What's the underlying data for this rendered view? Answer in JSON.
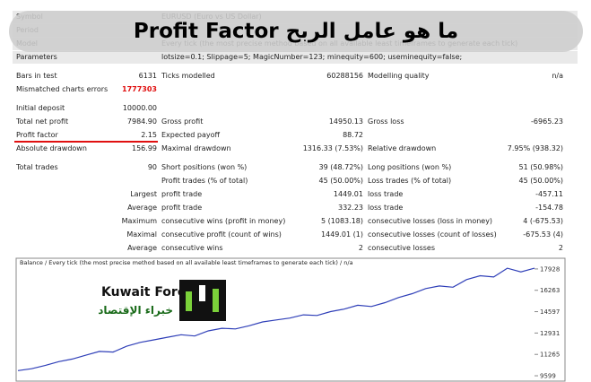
{
  "header": {
    "title": "ما هو عامل الربح Profit Factor"
  },
  "settings": [
    {
      "label": "Symbol",
      "value": "EURUSD (Euro vs US Dollar)"
    },
    {
      "label": "Period"
    },
    {
      "label": "Model",
      "value": "Every tick (the most precise method based on all available least timeframes to generate each tick)"
    },
    {
      "label": "Parameters",
      "value": "lotsize=0.1; Slippage=5; MagicNumber=123; minequity=600; useminequity=false;"
    }
  ],
  "report": {
    "rows": [
      [
        "Bars in test",
        "6131",
        "Ticks modelled",
        "60288156",
        "Modelling quality",
        "n/a"
      ],
      [
        "Mismatched charts errors",
        "1777303"
      ],
      [
        "Initial deposit",
        "10000.00"
      ],
      [
        "Total net profit",
        "7984.90",
        "Gross profit",
        "14950.13",
        "Gross loss",
        "-6965.23"
      ],
      [
        "Profit factor",
        "2.15",
        "Expected payoff",
        "88.72"
      ],
      [
        "Absolute drawdown",
        "156.99",
        "Maximal drawdown",
        "1316.33 (7.53%)",
        "Relative drawdown",
        "7.95% (938.32)"
      ],
      [
        "Total trades",
        "90",
        "Short positions (won %)",
        "39 (48.72%)",
        "Long positions (won %)",
        "51 (50.98%)"
      ],
      [
        "Profit trades (% of total)",
        "45 (50.00%)",
        "Loss trades (% of total)",
        "45 (50.00%)"
      ],
      [
        "Largest",
        "profit trade",
        "1449.01",
        "loss trade",
        "-457.11"
      ],
      [
        "Average",
        "profit trade",
        "332.23",
        "loss trade",
        "-154.78"
      ],
      [
        "Maximum",
        "consecutive wins (profit in money)",
        "5 (1083.18)",
        "consecutive losses (loss in money)",
        "4 (-675.53)"
      ],
      [
        "Maximal",
        "consecutive profit (count of wins)",
        "1449.01 (1)",
        "consecutive losses (count of losses)",
        "-675.53 (4)"
      ],
      [
        "Average",
        "consecutive wins",
        "2",
        "consecutive losses",
        "2"
      ]
    ]
  },
  "balance_chart": {
    "title": "Balance / Every tick (the most precise method based on all available least timeframes to generate each tick) / n/a",
    "ylim": [
      9183,
      18761
    ],
    "yticks": [
      9599,
      11265,
      12931,
      14597,
      16263,
      17928
    ],
    "color": "#2f3fb8",
    "values": [
      10000,
      10150,
      10400,
      10700,
      10900,
      11200,
      11500,
      11450,
      11900,
      12200,
      12400,
      12600,
      12800,
      12700,
      13100,
      13300,
      13250,
      13500,
      13800,
      13950,
      14100,
      14350,
      14300,
      14600,
      14800,
      15100,
      15000,
      15300,
      15700,
      16000,
      16400,
      16600,
      16500,
      17100,
      17400,
      17300,
      17985,
      17700,
      17985
    ]
  },
  "logo": {
    "name": "Kuwait Forex",
    "tagline": "خبراء الإقتصاد"
  }
}
